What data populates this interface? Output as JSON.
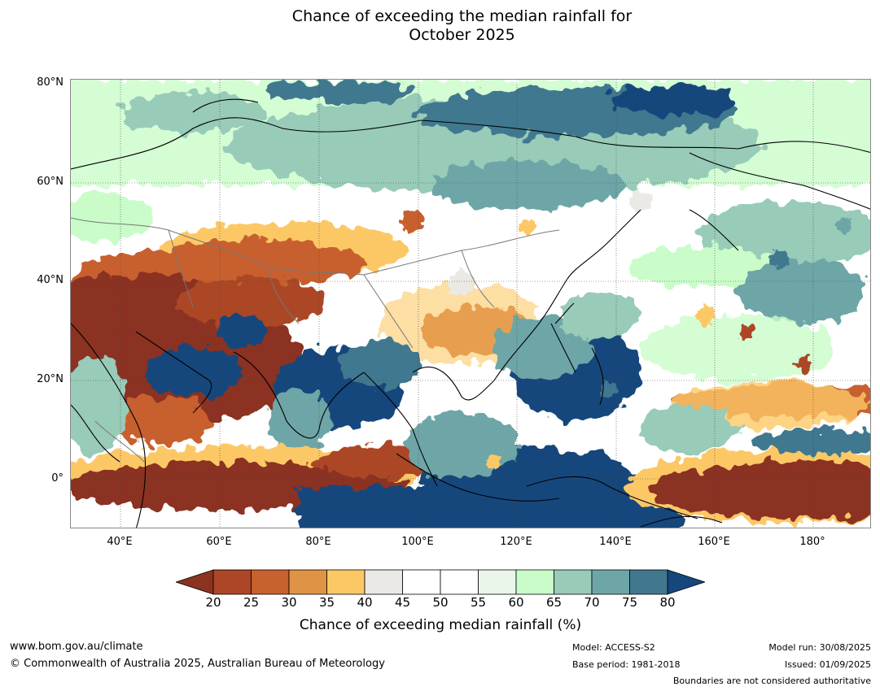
{
  "title_line1": "Chance of exceeding the median rainfall for",
  "title_line2": "October 2025",
  "lat_labels": [
    "80°N",
    "60°N",
    "40°N",
    "20°N",
    "0°"
  ],
  "lon_labels": [
    "40°E",
    "60°E",
    "80°E",
    "100°E",
    "120°E",
    "140°E",
    "160°E",
    "180°"
  ],
  "colorbar": {
    "ticks": [
      "20",
      "25",
      "30",
      "35",
      "40",
      "45",
      "50",
      "55",
      "60",
      "65",
      "70",
      "75",
      "80"
    ],
    "colors": [
      "#8b3320",
      "#ac4626",
      "#c7612f",
      "#df9344",
      "#fcc866",
      "#ebe9e5",
      "#ffffff",
      "#ffffff",
      "#eaf6ea",
      "#c9fcc9",
      "#98cbb8",
      "#6ea6a7",
      "#41788f",
      "#15477c"
    ],
    "label": "Chance of exceeding median rainfall (%)"
  },
  "footer": {
    "url": "www.bom.gov.au/climate",
    "copyright": "© Commonwealth of Australia 2025, Australian Bureau of Meteorology",
    "model": "Model: ACCESS-S2",
    "base_period": "Base period: 1981-2018",
    "model_run": "Model run: 30/08/2025",
    "issued": "Issued: 01/09/2025",
    "disclaimer": "Boundaries are not considered authoritative"
  }
}
